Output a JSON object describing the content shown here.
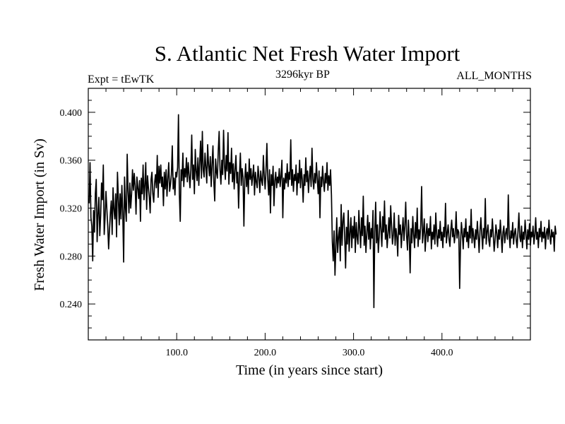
{
  "title": "S. Atlantic Net Fresh Water Import",
  "experiment_label": "Expt = tEwTK",
  "period_label": "3296kyr BP",
  "months_label": "ALL_MONTHS",
  "chart_data": {
    "type": "line",
    "title": "S. Atlantic Net Fresh Water Import",
    "xlabel": "Time (in years since start)",
    "ylabel": "Fresh Water Import (in Sv)",
    "xlim": [
      0,
      500
    ],
    "ylim": [
      0.21,
      0.42
    ],
    "x_ticks": [
      100.0,
      200.0,
      300.0,
      400.0
    ],
    "x_tick_labels": [
      "100.0",
      "200.0",
      "300.0",
      "400.0"
    ],
    "y_ticks": [
      0.24,
      0.28,
      0.32,
      0.36,
      0.4
    ],
    "y_tick_labels": [
      "0.240",
      "0.280",
      "0.320",
      "0.360",
      "0.400"
    ],
    "grid": false,
    "series": [
      {
        "name": "Fresh Water Import",
        "x_start": 1,
        "x_step": 1,
        "values": [
          0.324,
          0.358,
          0.312,
          0.305,
          0.276,
          0.318,
          0.3,
          0.332,
          0.344,
          0.292,
          0.315,
          0.329,
          0.297,
          0.314,
          0.341,
          0.327,
          0.356,
          0.298,
          0.312,
          0.334,
          0.319,
          0.305,
          0.286,
          0.302,
          0.316,
          0.326,
          0.298,
          0.337,
          0.319,
          0.311,
          0.332,
          0.296,
          0.35,
          0.329,
          0.306,
          0.332,
          0.311,
          0.339,
          0.316,
          0.275,
          0.346,
          0.321,
          0.309,
          0.365,
          0.334,
          0.316,
          0.341,
          0.32,
          0.332,
          0.352,
          0.335,
          0.349,
          0.338,
          0.315,
          0.346,
          0.337,
          0.328,
          0.343,
          0.309,
          0.345,
          0.332,
          0.356,
          0.327,
          0.339,
          0.358,
          0.319,
          0.347,
          0.337,
          0.329,
          0.316,
          0.344,
          0.35,
          0.332,
          0.325,
          0.341,
          0.348,
          0.337,
          0.364,
          0.329,
          0.355,
          0.341,
          0.356,
          0.338,
          0.346,
          0.322,
          0.35,
          0.336,
          0.352,
          0.33,
          0.345,
          0.358,
          0.334,
          0.34,
          0.348,
          0.372,
          0.336,
          0.345,
          0.331,
          0.35,
          0.346,
          0.354,
          0.398,
          0.332,
          0.309,
          0.352,
          0.343,
          0.366,
          0.338,
          0.353,
          0.346,
          0.362,
          0.342,
          0.358,
          0.348,
          0.337,
          0.352,
          0.381,
          0.344,
          0.356,
          0.332,
          0.369,
          0.351,
          0.343,
          0.362,
          0.339,
          0.358,
          0.376,
          0.345,
          0.384,
          0.352,
          0.346,
          0.366,
          0.354,
          0.341,
          0.373,
          0.356,
          0.347,
          0.363,
          0.338,
          0.357,
          0.372,
          0.342,
          0.326,
          0.361,
          0.35,
          0.345,
          0.368,
          0.384,
          0.352,
          0.34,
          0.36,
          0.348,
          0.385,
          0.356,
          0.344,
          0.364,
          0.351,
          0.383,
          0.34,
          0.358,
          0.349,
          0.37,
          0.342,
          0.357,
          0.336,
          0.352,
          0.364,
          0.341,
          0.35,
          0.32,
          0.348,
          0.366,
          0.339,
          0.353,
          0.346,
          0.305,
          0.344,
          0.357,
          0.338,
          0.35,
          0.332,
          0.361,
          0.344,
          0.353,
          0.339,
          0.347,
          0.356,
          0.331,
          0.35,
          0.342,
          0.337,
          0.355,
          0.346,
          0.333,
          0.351,
          0.343,
          0.339,
          0.364,
          0.347,
          0.336,
          0.352,
          0.374,
          0.344,
          0.331,
          0.352,
          0.316,
          0.348,
          0.339,
          0.355,
          0.322,
          0.343,
          0.35,
          0.337,
          0.346,
          0.341,
          0.353,
          0.338,
          0.347,
          0.36,
          0.312,
          0.345,
          0.336,
          0.349,
          0.341,
          0.357,
          0.338,
          0.35,
          0.344,
          0.377,
          0.339,
          0.352,
          0.334,
          0.348,
          0.343,
          0.356,
          0.331,
          0.349,
          0.341,
          0.36,
          0.337,
          0.353,
          0.344,
          0.325,
          0.348,
          0.339,
          0.362,
          0.342,
          0.351,
          0.333,
          0.346,
          0.355,
          0.338,
          0.37,
          0.344,
          0.336,
          0.349,
          0.341,
          0.358,
          0.344,
          0.332,
          0.351,
          0.312,
          0.346,
          0.338,
          0.355,
          0.342,
          0.334,
          0.349,
          0.341,
          0.358,
          0.335,
          0.347,
          0.339,
          0.352,
          0.331,
          0.292,
          0.276,
          0.301,
          0.264,
          0.287,
          0.312,
          0.283,
          0.296,
          0.304,
          0.276,
          0.323,
          0.289,
          0.309,
          0.316,
          0.296,
          0.27,
          0.304,
          0.29,
          0.318,
          0.284,
          0.299,
          0.312,
          0.287,
          0.305,
          0.295,
          0.313,
          0.283,
          0.308,
          0.296,
          0.29,
          0.318,
          0.302,
          0.287,
          0.312,
          0.297,
          0.33,
          0.289,
          0.305,
          0.283,
          0.299,
          0.314,
          0.294,
          0.308,
          0.286,
          0.303,
          0.295,
          0.318,
          0.237,
          0.3,
          0.325,
          0.291,
          0.306,
          0.283,
          0.296,
          0.317,
          0.302,
          0.288,
          0.313,
          0.3,
          0.326,
          0.294,
          0.306,
          0.287,
          0.299,
          0.312,
          0.295,
          0.322,
          0.305,
          0.29,
          0.298,
          0.316,
          0.289,
          0.303,
          0.296,
          0.28,
          0.314,
          0.298,
          0.306,
          0.287,
          0.3,
          0.312,
          0.293,
          0.305,
          0.325,
          0.297,
          0.285,
          0.31,
          0.296,
          0.266,
          0.303,
          0.291,
          0.313,
          0.298,
          0.287,
          0.308,
          0.295,
          0.32,
          0.288,
          0.302,
          0.294,
          0.306,
          0.338,
          0.291,
          0.3,
          0.311,
          0.284,
          0.298,
          0.307,
          0.292,
          0.303,
          0.297,
          0.313,
          0.286,
          0.3,
          0.294,
          0.306,
          0.29,
          0.316,
          0.298,
          0.288,
          0.302,
          0.295,
          0.309,
          0.293,
          0.3,
          0.287,
          0.304,
          0.296,
          0.324,
          0.291,
          0.299,
          0.306,
          0.294,
          0.288,
          0.302,
          0.31,
          0.296,
          0.303,
          0.291,
          0.298,
          0.317,
          0.295,
          0.302,
          0.3,
          0.253,
          0.291,
          0.308,
          0.299,
          0.286,
          0.303,
          0.296,
          0.311,
          0.292,
          0.3,
          0.287,
          0.305,
          0.295,
          0.319,
          0.291,
          0.303,
          0.296,
          0.287,
          0.302,
          0.294,
          0.309,
          0.297,
          0.283,
          0.301,
          0.312,
          0.298,
          0.286,
          0.303,
          0.295,
          0.328,
          0.29,
          0.3,
          0.306,
          0.293,
          0.288,
          0.302,
          0.296,
          0.311,
          0.298,
          0.284,
          0.293,
          0.306,
          0.299,
          0.287,
          0.302,
          0.294,
          0.31,
          0.297,
          0.283,
          0.3,
          0.305,
          0.291,
          0.299,
          0.303,
          0.294,
          0.331,
          0.298,
          0.287,
          0.301,
          0.295,
          0.308,
          0.29,
          0.299,
          0.303,
          0.293,
          0.287,
          0.301,
          0.316,
          0.296,
          0.292,
          0.305,
          0.287,
          0.3,
          0.294,
          0.31,
          0.298,
          0.286,
          0.302,
          0.294,
          0.307,
          0.289,
          0.3,
          0.296,
          0.305,
          0.29,
          0.298,
          0.312,
          0.294,
          0.3,
          0.287,
          0.303,
          0.296,
          0.309,
          0.292,
          0.3,
          0.295,
          0.304,
          0.286,
          0.299,
          0.303,
          0.294,
          0.31,
          0.297,
          0.29,
          0.302,
          0.296,
          0.3,
          0.284,
          0.305,
          0.298
        ]
      }
    ]
  }
}
